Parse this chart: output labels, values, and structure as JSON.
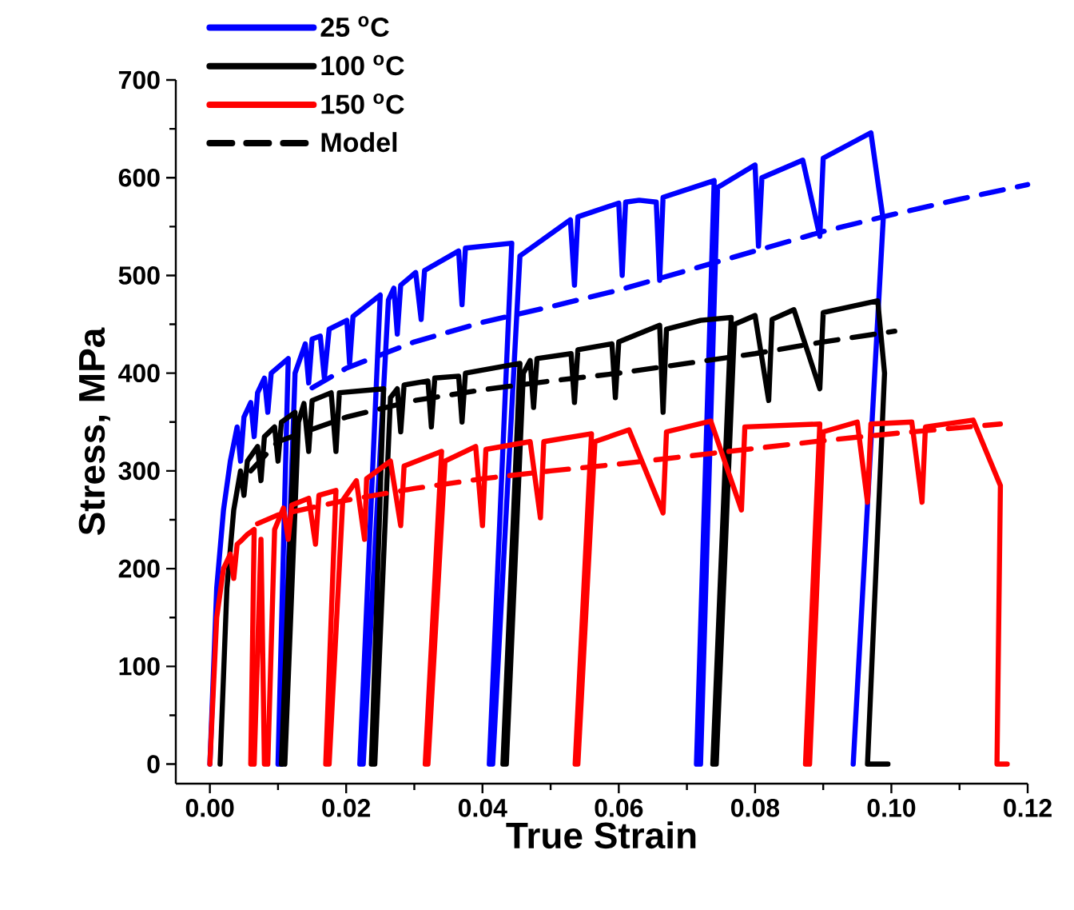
{
  "chart_data": {
    "type": "line",
    "xlabel": "True Strain",
    "ylabel": "Stress, MPa",
    "xlim": [
      -0.005,
      0.12
    ],
    "ylim": [
      -20,
      700
    ],
    "xticks": [
      {
        "value": 0,
        "label": "0.00"
      },
      {
        "value": 0.02,
        "label": "0.02"
      },
      {
        "value": 0.04,
        "label": "0.04"
      },
      {
        "value": 0.06,
        "label": "0.06"
      },
      {
        "value": 0.08,
        "label": "0.08"
      },
      {
        "value": 0.1,
        "label": "0.10"
      },
      {
        "value": 0.12,
        "label": "0.12"
      }
    ],
    "yticks": [
      0,
      100,
      200,
      300,
      400,
      500,
      600,
      700
    ],
    "legend": "top left",
    "series": [
      {
        "name": "25 $^{o}$C",
        "color": "#0000ff",
        "line_style": "solid",
        "x": [
          0,
          0.001,
          0.002,
          0.003,
          0.004,
          0.0045,
          0.005,
          0.006,
          0.0065,
          0.007,
          0.008,
          0.0085,
          0.009,
          0.0115,
          0.01,
          0.0105,
          0.0125,
          0.014,
          0.0145,
          0.015,
          0.0162,
          0.0168,
          0.0175,
          0.0201,
          0.0205,
          0.021,
          0.025,
          0.022,
          0.0225,
          0.0262,
          0.027,
          0.0275,
          0.028,
          0.0302,
          0.031,
          0.0315,
          0.0365,
          0.037,
          0.0375,
          0.0443,
          0.041,
          0.0415,
          0.0455,
          0.0529,
          0.0535,
          0.054,
          0.06,
          0.0605,
          0.061,
          0.063,
          0.0655,
          0.066,
          0.0665,
          0.074,
          0.0714,
          0.072,
          0.0745,
          0.08,
          0.0805,
          0.081,
          0.087,
          0.0895,
          0.09,
          0.097,
          0.0988,
          0.0944
        ],
        "values": [
          0,
          180,
          260,
          310,
          345,
          310,
          355,
          370,
          335,
          380,
          395,
          360,
          400,
          415,
          0,
          0,
          400,
          430,
          390,
          435,
          438,
          395,
          445,
          454,
          410,
          458,
          480,
          0,
          0,
          475,
          487,
          440,
          490,
          503,
          455,
          505,
          525,
          470,
          528,
          533,
          0,
          0,
          520,
          557,
          490,
          560,
          574,
          500,
          575,
          577,
          575,
          495,
          580,
          597,
          0,
          0,
          590,
          613,
          530,
          600,
          618,
          540,
          620,
          646,
          557,
          0
        ]
      },
      {
        "name": "100 $^{o}$C",
        "color": "#000000",
        "line_style": "solid",
        "x": [
          0.0015,
          0.0025,
          0.0035,
          0.0045,
          0.005,
          0.0055,
          0.007,
          0.0075,
          0.008,
          0.0095,
          0.01,
          0.0105,
          0.0125,
          0.0105,
          0.011,
          0.013,
          0.0138,
          0.0145,
          0.015,
          0.0178,
          0.0185,
          0.019,
          0.0255,
          0.0237,
          0.0242,
          0.0265,
          0.0275,
          0.028,
          0.0285,
          0.032,
          0.0325,
          0.033,
          0.0365,
          0.037,
          0.0375,
          0.0455,
          0.043,
          0.0435,
          0.046,
          0.047,
          0.0475,
          0.048,
          0.053,
          0.0535,
          0.054,
          0.059,
          0.0595,
          0.06,
          0.066,
          0.0665,
          0.067,
          0.072,
          0.0765,
          0.0738,
          0.0743,
          0.077,
          0.08,
          0.082,
          0.0825,
          0.0857,
          0.0895,
          0.09,
          0.098,
          0.099,
          0.0965,
          0.0995
        ],
        "values": [
          0,
          180,
          260,
          300,
          275,
          310,
          325,
          290,
          335,
          345,
          310,
          350,
          360,
          0,
          0,
          350,
          369,
          320,
          372,
          380,
          320,
          380,
          384,
          0,
          0,
          375,
          384,
          340,
          388,
          392,
          345,
          395,
          397,
          350,
          400,
          410,
          0,
          0,
          400,
          413,
          365,
          415,
          420,
          370,
          424,
          430,
          375,
          432,
          449,
          360,
          445,
          454,
          457,
          0,
          0,
          450,
          459,
          372,
          455,
          465,
          384,
          462,
          474,
          400,
          0,
          0
        ]
      },
      {
        "name": "150 $^{o}$C",
        "color": "#ff0000",
        "line_style": "solid",
        "x": [
          0,
          0.001,
          0.002,
          0.003,
          0.0035,
          0.004,
          0.0045,
          0.0055,
          0.0065,
          0.006,
          0.0065,
          0.0075,
          0.008,
          0.0085,
          0.0095,
          0.0108,
          0.0115,
          0.012,
          0.0145,
          0.0155,
          0.016,
          0.0185,
          0.017,
          0.0175,
          0.0195,
          0.0215,
          0.0227,
          0.023,
          0.0265,
          0.028,
          0.0285,
          0.034,
          0.0316,
          0.032,
          0.0345,
          0.039,
          0.04,
          0.0405,
          0.047,
          0.0485,
          0.049,
          0.056,
          0.0536,
          0.054,
          0.0565,
          0.0615,
          0.0665,
          0.067,
          0.0735,
          0.078,
          0.0785,
          0.0895,
          0.0874,
          0.088,
          0.09,
          0.095,
          0.0965,
          0.097,
          0.103,
          0.1045,
          0.105,
          0.112,
          0.116,
          0.1155,
          0.117
        ],
        "values": [
          0,
          150,
          200,
          215,
          190,
          225,
          228,
          235,
          240,
          0,
          0,
          230,
          0,
          0,
          240,
          262,
          230,
          265,
          272,
          225,
          275,
          280,
          0,
          0,
          270,
          290,
          230,
          292,
          310,
          244,
          305,
          320,
          0,
          0,
          310,
          325,
          244,
          322,
          330,
          252,
          330,
          338,
          0,
          0,
          330,
          342,
          257,
          340,
          351,
          260,
          345,
          348,
          0,
          0,
          340,
          350,
          268,
          348,
          350,
          268,
          345,
          352,
          285,
          0,
          0
        ]
      },
      {
        "name": "Model",
        "color": "#000000",
        "line_style": "dashed",
        "x": [
          0.006,
          0.01,
          0.02,
          0.03,
          0.04,
          0.05,
          0.06,
          0.07,
          0.08,
          0.09,
          0.1005
        ],
        "values": [
          300,
          330,
          355,
          372,
          383,
          392,
          400,
          410,
          420,
          432,
          443
        ]
      },
      {
        "color": "#0000ff",
        "line_style": "dashed",
        "x": [
          0.015,
          0.02,
          0.03,
          0.04,
          0.05,
          0.06,
          0.07,
          0.08,
          0.09,
          0.1,
          0.11,
          0.12
        ],
        "values": [
          385,
          405,
          432,
          452,
          468,
          485,
          505,
          525,
          545,
          562,
          578,
          593
        ]
      },
      {
        "color": "#ff0000",
        "line_style": "dashed",
        "x": [
          0.007,
          0.01,
          0.02,
          0.03,
          0.04,
          0.05,
          0.06,
          0.07,
          0.08,
          0.09,
          0.1,
          0.116
        ],
        "values": [
          246,
          255,
          270,
          282,
          292,
          300,
          307,
          315,
          323,
          331,
          338,
          348
        ]
      }
    ]
  }
}
